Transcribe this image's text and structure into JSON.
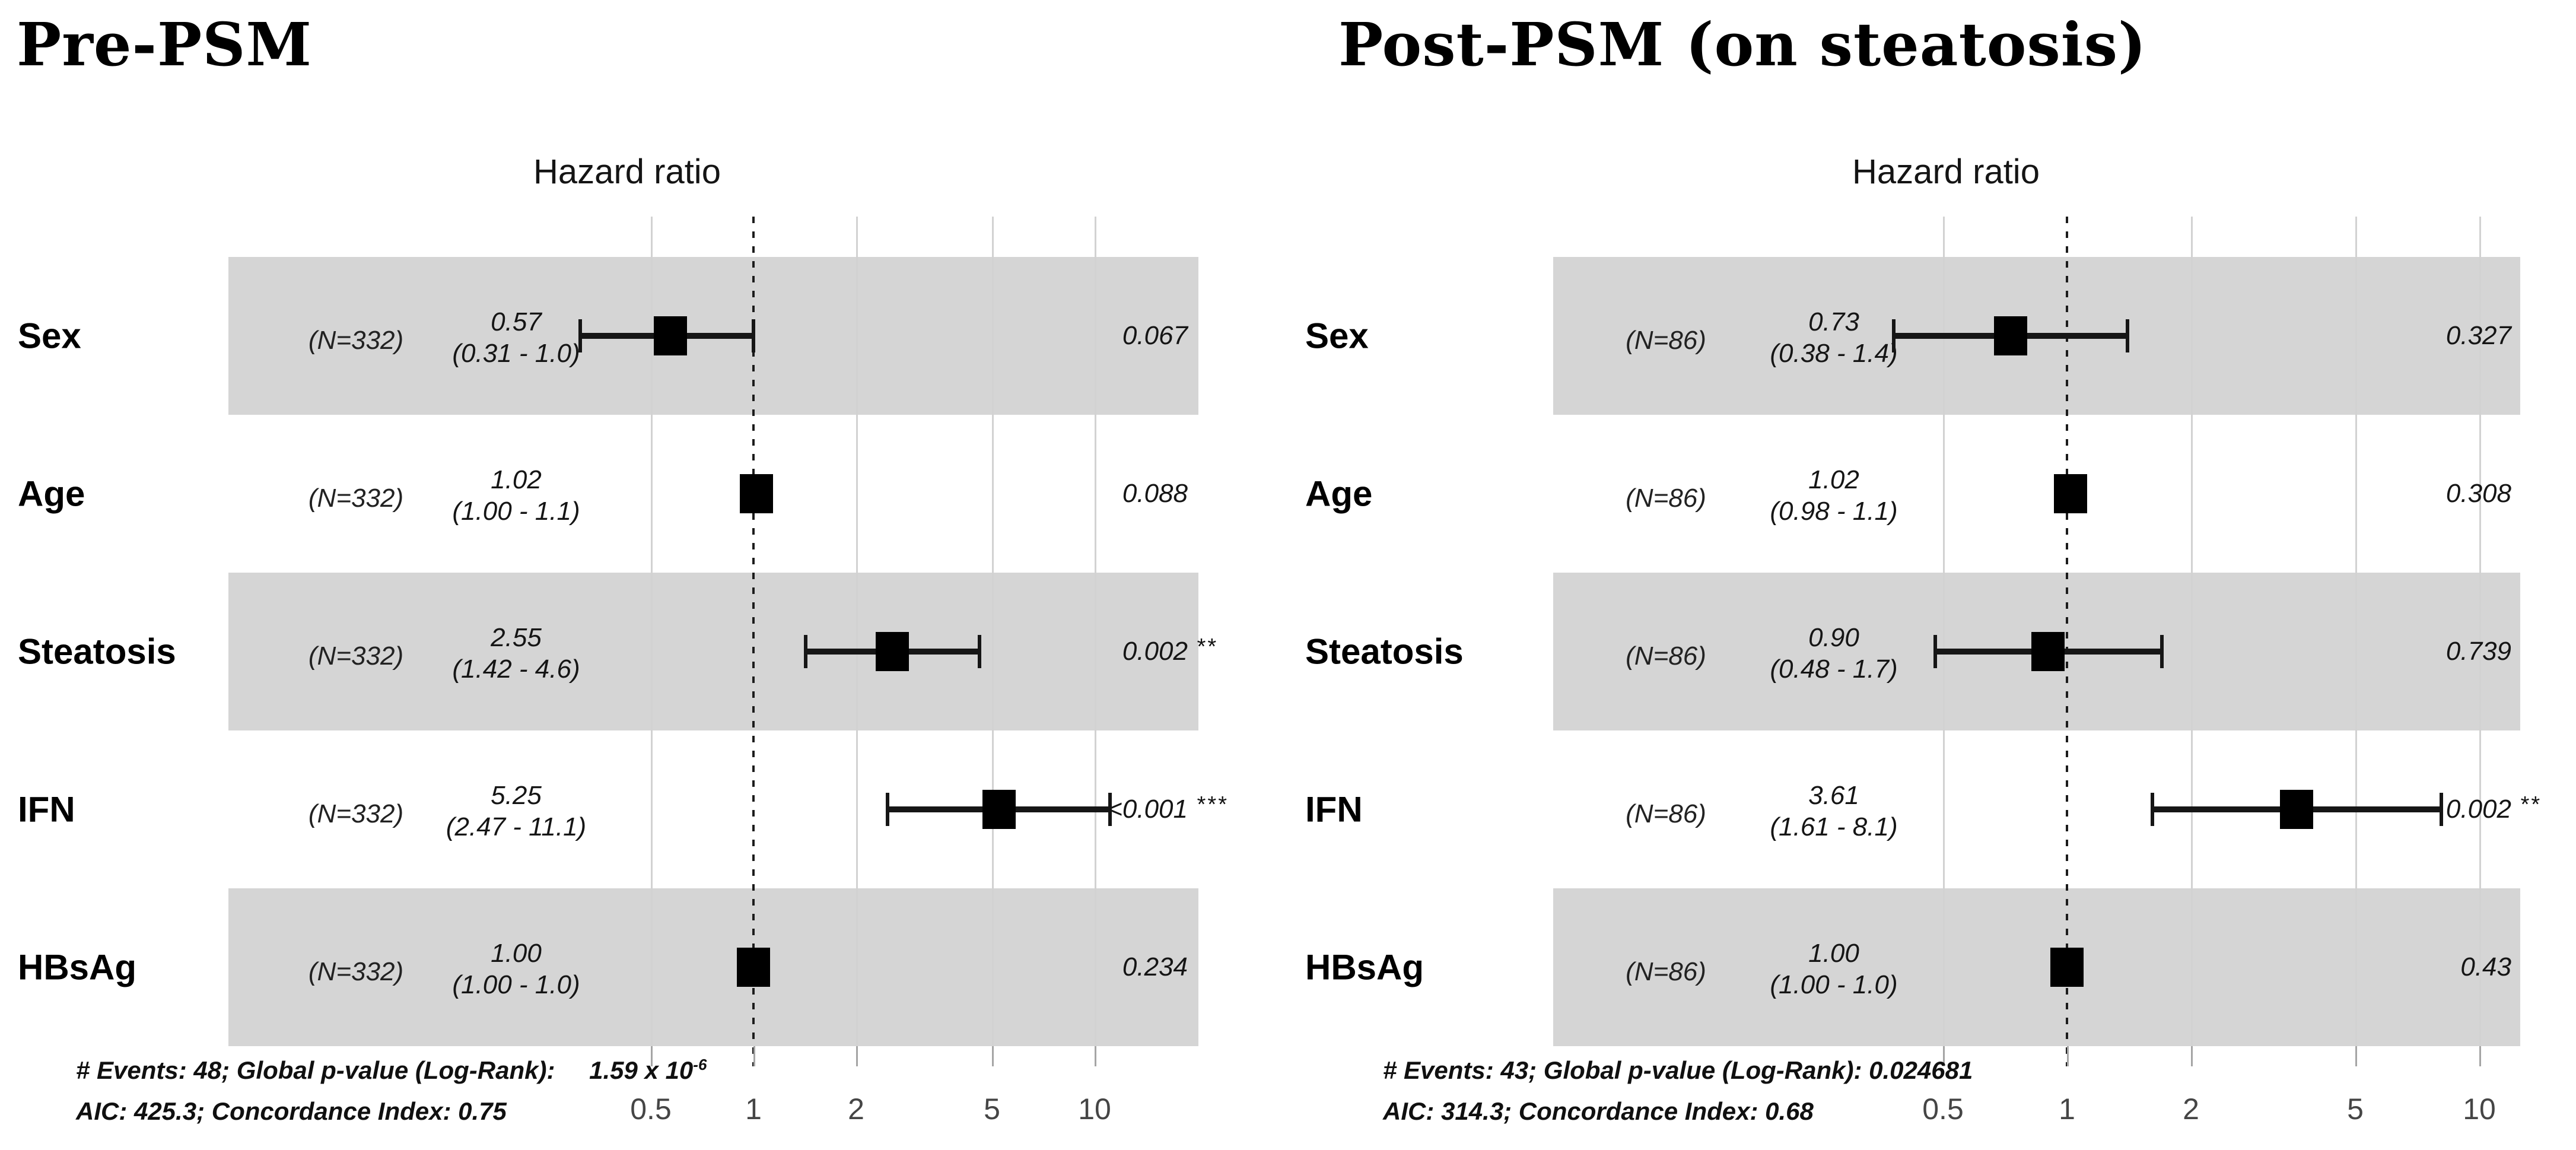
{
  "chart_data": [
    {
      "type": "scatter",
      "subtype": "forest-plot",
      "title": "Pre-PSM",
      "axis_title": "Hazard ratio",
      "x_scale": "log",
      "x_ticks": [
        0.5,
        1,
        2,
        5,
        10
      ],
      "x_tick_labels": [
        "0.5",
        "1",
        "2",
        "5",
        "10"
      ],
      "reference_line": 1,
      "legend": "none",
      "rows": [
        {
          "label": "Sex",
          "n_label": "(N=332)",
          "estimate": 0.57,
          "ci_low": 0.31,
          "ci_high": 1.0,
          "estimate_label": "0.57",
          "ci_label": "(0.31 - 1.0)",
          "p_label": "0.067",
          "stars": "",
          "shaded": true
        },
        {
          "label": "Age",
          "n_label": "(N=332)",
          "estimate": 1.02,
          "ci_low": 1.0,
          "ci_high": 1.1,
          "estimate_label": "1.02",
          "ci_label": "(1.00 - 1.1)",
          "p_label": "0.088",
          "stars": "",
          "shaded": false
        },
        {
          "label": "Steatosis",
          "n_label": "(N=332)",
          "estimate": 2.55,
          "ci_low": 1.42,
          "ci_high": 4.6,
          "estimate_label": "2.55",
          "ci_label": "(1.42 - 4.6)",
          "p_label": "0.002",
          "stars": "**",
          "shaded": true
        },
        {
          "label": "IFN",
          "n_label": "(N=332)",
          "estimate": 5.25,
          "ci_low": 2.47,
          "ci_high": 11.1,
          "estimate_label": "5.25",
          "ci_label": "(2.47 - 11.1)",
          "p_label": "<0.001",
          "stars": "***",
          "shaded": false
        },
        {
          "label": "HBsAg",
          "n_label": "(N=332)",
          "estimate": 1.0,
          "ci_low": 1.0,
          "ci_high": 1.0,
          "estimate_label": "1.00",
          "ci_label": "(1.00 - 1.0)",
          "p_label": "0.234",
          "stars": "",
          "shaded": true
        }
      ],
      "footer1_prefix": "# Events: 48; Global p-value (Log-Rank): ",
      "footer1_value": "1.59 x 10",
      "footer1_value_exp": "-6",
      "footer2": "AIC: 425.3; Concordance Index: 0.75"
    },
    {
      "type": "scatter",
      "subtype": "forest-plot",
      "title": "Post-PSM (on steatosis)",
      "axis_title": "Hazard ratio",
      "x_scale": "log",
      "x_ticks": [
        0.5,
        1,
        2,
        5,
        10
      ],
      "x_tick_labels": [
        "0.5",
        "1",
        "2",
        "5",
        "10"
      ],
      "reference_line": 1,
      "legend": "none",
      "rows": [
        {
          "label": "Sex",
          "n_label": "(N=86)",
          "estimate": 0.73,
          "ci_low": 0.38,
          "ci_high": 1.4,
          "estimate_label": "0.73",
          "ci_label": "(0.38 - 1.4)",
          "p_label": "0.327",
          "stars": "",
          "shaded": true
        },
        {
          "label": "Age",
          "n_label": "(N=86)",
          "estimate": 1.02,
          "ci_low": 0.98,
          "ci_high": 1.1,
          "estimate_label": "1.02",
          "ci_label": "(0.98 - 1.1)",
          "p_label": "0.308",
          "stars": "",
          "shaded": false
        },
        {
          "label": "Steatosis",
          "n_label": "(N=86)",
          "estimate": 0.9,
          "ci_low": 0.48,
          "ci_high": 1.7,
          "estimate_label": "0.90",
          "ci_label": "(0.48 - 1.7)",
          "p_label": "0.739",
          "stars": "",
          "shaded": true
        },
        {
          "label": "IFN",
          "n_label": "(N=86)",
          "estimate": 3.61,
          "ci_low": 1.61,
          "ci_high": 8.1,
          "estimate_label": "3.61",
          "ci_label": "(1.61 - 8.1)",
          "p_label": "0.002",
          "stars": "**",
          "shaded": false
        },
        {
          "label": "HBsAg",
          "n_label": "(N=86)",
          "estimate": 1.0,
          "ci_low": 1.0,
          "ci_high": 1.0,
          "estimate_label": "1.00",
          "ci_label": "(1.00 - 1.0)",
          "p_label": "0.43",
          "stars": "",
          "shaded": true
        }
      ],
      "footer1_prefix": "# Events: 43; Global p-value (Log-Rank): 0.024681",
      "footer1_value": "",
      "footer1_value_exp": "",
      "footer2": "AIC: 314.3; Concordance Index: 0.68"
    }
  ],
  "colors": {
    "band": "#d5d5d5",
    "gridline": "#d2d2d2",
    "reference_line": "#1c1c1c",
    "marker": "#000000",
    "text": "#111111",
    "tick_text": "#454545"
  }
}
